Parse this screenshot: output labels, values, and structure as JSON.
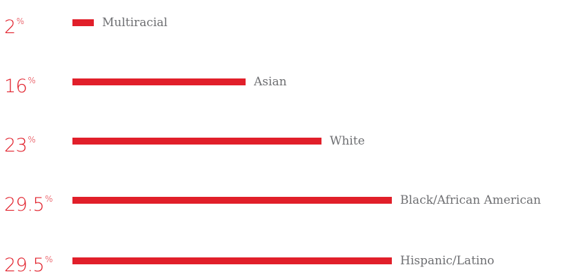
{
  "chart_data": {
    "type": "bar",
    "orientation": "horizontal",
    "categories": [
      "Multiracial",
      "Asian",
      "White",
      "Black/African American",
      "Hispanic/Latino"
    ],
    "values": [
      2,
      16,
      23,
      29.5,
      29.5
    ],
    "value_labels": [
      "2",
      "16",
      "23",
      "29.5",
      "29.5"
    ],
    "unit_symbol": "%",
    "title": "",
    "xlabel": "",
    "ylabel": "",
    "xlim": [
      0,
      29.5
    ],
    "grid": false,
    "legend": "none"
  },
  "colors": {
    "bar": "#e11f2a",
    "value_text": "#e11f2a",
    "label_text": "#6d6e71"
  }
}
